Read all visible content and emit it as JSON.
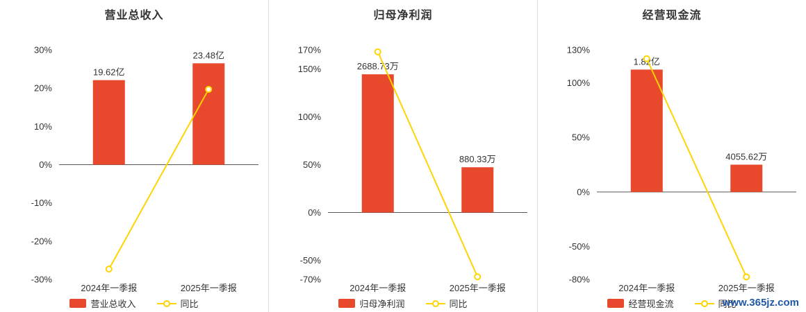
{
  "page": {
    "watermark": "www.365jz.com"
  },
  "colors": {
    "bar": "#e8492d",
    "line": "#ffd400",
    "marker_fill": "#ffffff",
    "zero_line": "#595959",
    "text": "#333333",
    "title": "#333333",
    "divider": "#dcdcdc",
    "watermark": "#2057a7"
  },
  "chart_data": [
    {
      "type": "bar",
      "title": "营业总收入",
      "categories": [
        "2024年一季报",
        "2025年一季报"
      ],
      "bars": {
        "name": "营业总收入",
        "value_labels": [
          "19.62亿",
          "23.48亿"
        ],
        "display_pct": [
          22.1,
          26.5
        ]
      },
      "line": {
        "name": "同比",
        "values_pct": [
          -27.3,
          19.7
        ]
      },
      "ylim": [
        -30,
        30
      ],
      "yticks": [
        30,
        20,
        10,
        0,
        -10,
        -20,
        -30
      ],
      "ytick_suffix": "%",
      "grid": false,
      "legend_position": "bottom"
    },
    {
      "type": "bar",
      "title": "归母净利润",
      "categories": [
        "2024年一季报",
        "2025年一季报"
      ],
      "bars": {
        "name": "归母净利润",
        "value_labels": [
          "2688.73万",
          "880.33万"
        ],
        "display_pct": [
          144.5,
          47.3
        ]
      },
      "line": {
        "name": "同比",
        "values_pct": [
          168.0,
          -67.3
        ]
      },
      "ylim": [
        -70,
        170
      ],
      "yticks": [
        170,
        150,
        100,
        50,
        0,
        -50,
        -70
      ],
      "ytick_suffix": "%",
      "grid": false,
      "legend_position": "bottom"
    },
    {
      "type": "bar",
      "title": "经营现金流",
      "categories": [
        "2024年一季报",
        "2025年一季报"
      ],
      "bars": {
        "name": "经营现金流",
        "value_labels": [
          "1.82亿",
          "4055.62万"
        ],
        "display_pct": [
          112.0,
          25.0
        ]
      },
      "line": {
        "name": "同比",
        "values_pct": [
          122.0,
          -77.7
        ]
      },
      "ylim": [
        -80,
        130
      ],
      "yticks": [
        130,
        100,
        50,
        0,
        -50,
        -80
      ],
      "ytick_suffix": "%",
      "grid": false,
      "legend_position": "bottom"
    }
  ]
}
